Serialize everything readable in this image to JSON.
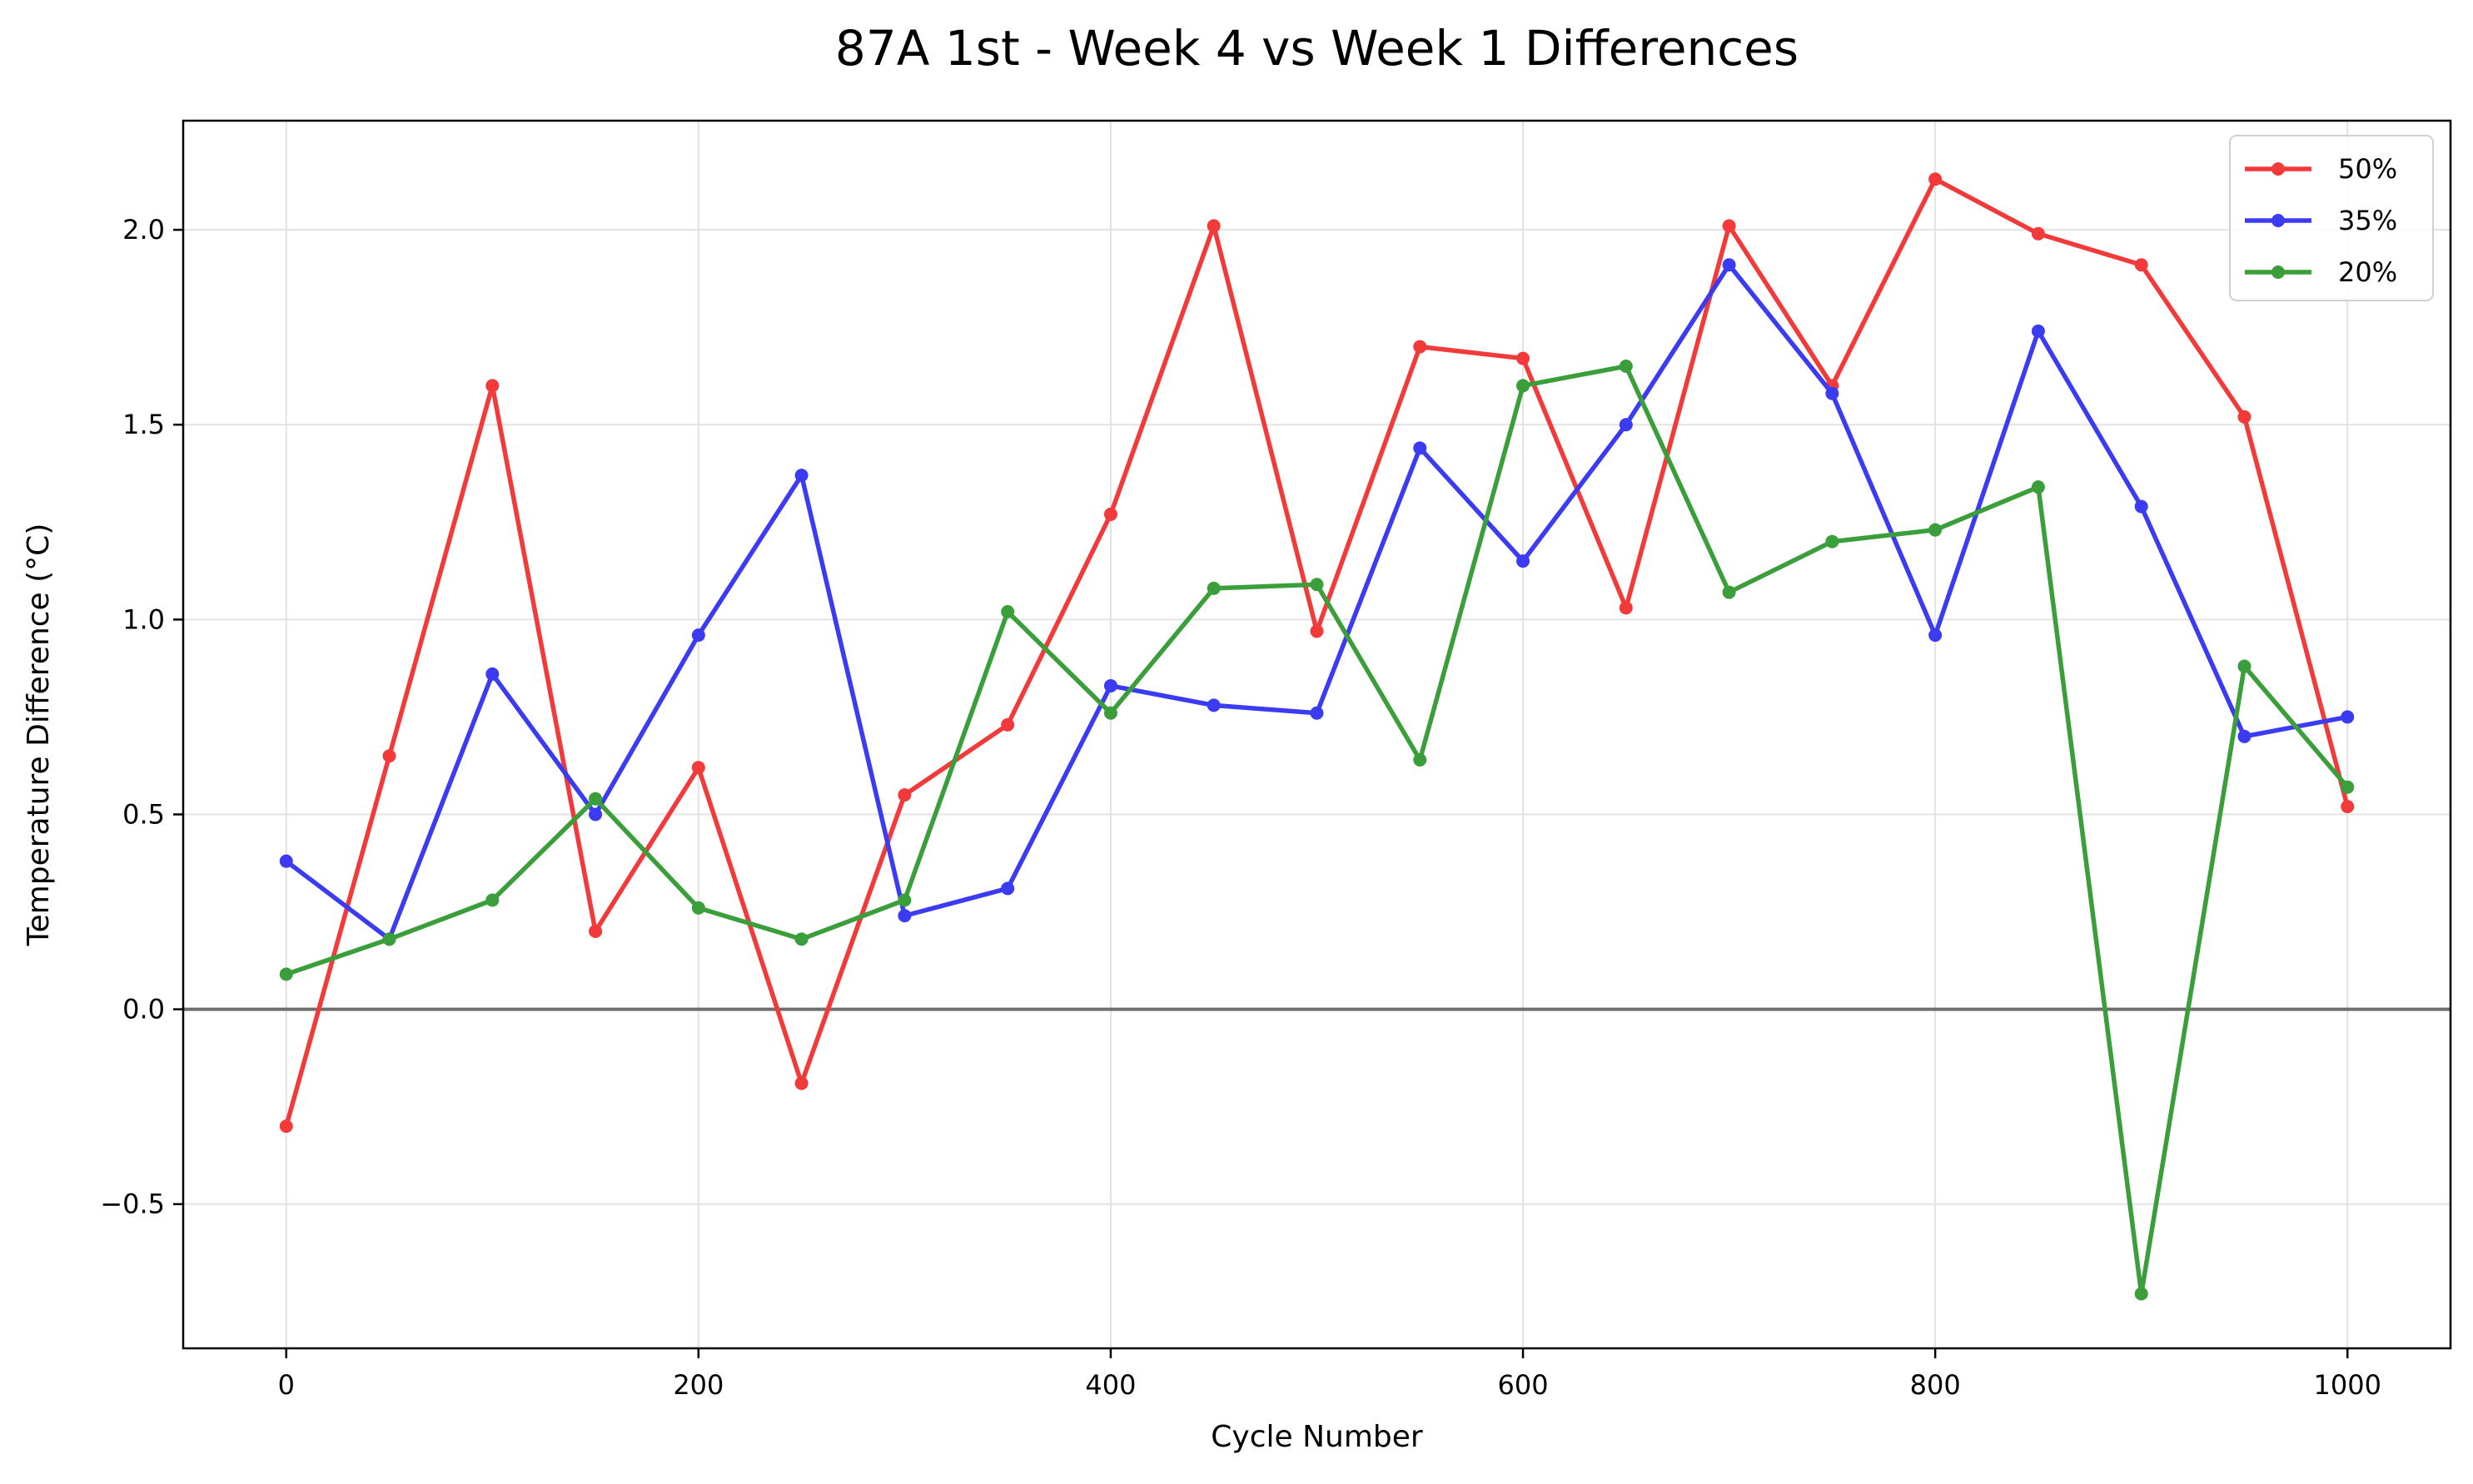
{
  "chart_data": {
    "type": "line",
    "title": "87A 1st - Week 4 vs Week 1 Differences",
    "xlabel": "Cycle Number",
    "ylabel": "Temperature Difference (°C)",
    "xlim": [
      -50,
      1050
    ],
    "ylim": [
      -0.87,
      2.28
    ],
    "x_ticks": [
      0,
      200,
      400,
      600,
      800,
      1000
    ],
    "y_ticks": [
      -0.5,
      0.0,
      0.5,
      1.0,
      1.5,
      2.0
    ],
    "y_tick_labels": [
      "−0.5",
      "0.0",
      "0.5",
      "1.0",
      "1.5",
      "2.0"
    ],
    "grid": true,
    "reference_line_y": 0,
    "legend_position": "top-right",
    "x": [
      0,
      50,
      100,
      150,
      200,
      250,
      300,
      350,
      400,
      450,
      500,
      550,
      600,
      650,
      700,
      750,
      800,
      850,
      900,
      950,
      1000
    ],
    "series": [
      {
        "name": "50%",
        "color": "#f23a3a",
        "values": [
          -0.3,
          0.65,
          1.6,
          0.2,
          0.62,
          -0.19,
          0.55,
          0.73,
          1.27,
          2.01,
          0.97,
          1.7,
          1.67,
          1.03,
          2.01,
          1.6,
          2.13,
          1.99,
          1.91,
          1.52,
          0.52
        ]
      },
      {
        "name": "35%",
        "color": "#3b3bf2",
        "values": [
          0.38,
          0.18,
          0.86,
          0.5,
          0.96,
          1.37,
          0.24,
          0.31,
          0.83,
          0.78,
          0.76,
          1.44,
          1.15,
          1.5,
          1.91,
          1.58,
          0.96,
          1.74,
          1.29,
          0.7,
          0.75
        ]
      },
      {
        "name": "20%",
        "color": "#3a9e3a",
        "values": [
          0.09,
          0.18,
          0.28,
          0.54,
          0.26,
          0.18,
          0.28,
          1.02,
          0.76,
          1.08,
          1.09,
          0.64,
          1.6,
          1.65,
          1.07,
          1.2,
          1.23,
          1.34,
          -0.73,
          0.88,
          0.57
        ]
      }
    ]
  }
}
